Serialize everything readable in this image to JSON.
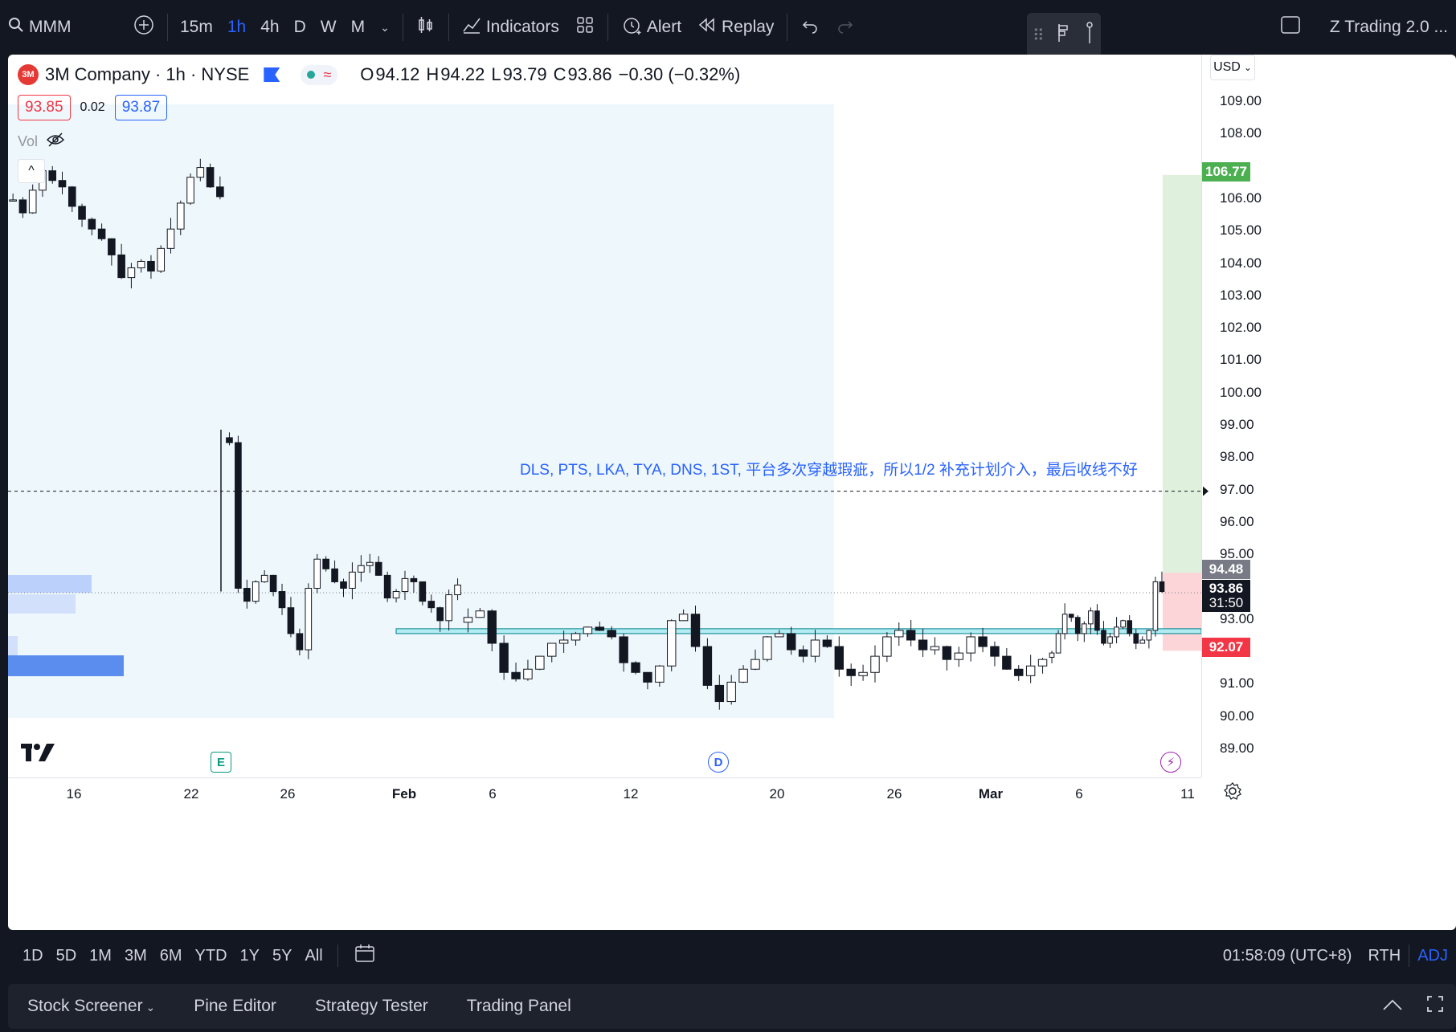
{
  "toolbar": {
    "symbol": "MMM",
    "intervals": [
      "15m",
      "1h",
      "4h",
      "D",
      "W",
      "M"
    ],
    "active_interval": "1h",
    "indicators_label": "Indicators",
    "alert_label": "Alert",
    "replay_label": "Replay",
    "layout_name": "Z Trading 2.0 ..."
  },
  "legend": {
    "logo_text": "3M",
    "title": "3M Company · 1h · NYSE",
    "wave": "≈",
    "ohlc": [
      {
        "k": "O",
        "v": "94.12"
      },
      {
        "k": "H",
        "v": "94.22"
      },
      {
        "k": "L",
        "v": "93.79"
      },
      {
        "k": "C",
        "v": "93.86"
      }
    ],
    "change": "−0.30 (−0.32%)",
    "bid": "93.85",
    "spread": "0.02",
    "ask": "93.87",
    "vol_label": "Vol",
    "collapse": "^"
  },
  "price_axis": {
    "currency": "USD",
    "ticks": [
      "109.00",
      "108.00",
      "106.00",
      "105.00",
      "104.00",
      "103.00",
      "102.00",
      "101.00",
      "100.00",
      "99.00",
      "98.00",
      "97.00",
      "96.00",
      "95.00",
      "93.00",
      "91.00",
      "90.00",
      "89.00"
    ],
    "tags": {
      "target": {
        "label": "106.77",
        "color": "#4caf50"
      },
      "entry": {
        "label": "94.48",
        "color": "#787b86"
      },
      "last": {
        "label": "93.86",
        "countdown": "31:50",
        "color": "#131722"
      },
      "stop": {
        "label": "92.07",
        "color": "#f23645"
      }
    }
  },
  "time_axis": {
    "ticks": [
      "16",
      "22",
      "26",
      "Feb",
      "6",
      "12",
      "20",
      "26",
      "Mar",
      "6",
      "11"
    ]
  },
  "events": {
    "earnings": "E",
    "dividend": "D",
    "split": "⚡"
  },
  "annotation": "DLS, PTS, LKA, TYA, DNS, 1ST, 平台多次穿越瑕疵，所以1/2 补充计划介入，最后收线不好",
  "bottom_bar": {
    "ranges": [
      "1D",
      "5D",
      "1M",
      "3M",
      "6M",
      "YTD",
      "1Y",
      "5Y",
      "All"
    ],
    "clock": "01:58:09 (UTC+8)",
    "session": "RTH",
    "adj": "ADJ"
  },
  "panels": {
    "tabs": [
      "Stock Screener",
      "Pine Editor",
      "Strategy Tester",
      "Trading Panel"
    ]
  },
  "chart_data": {
    "type": "candlestick",
    "title": "3M Company · 1h · NYSE",
    "ylim": [
      88.5,
      110
    ],
    "x_ticks": [
      "16",
      "22",
      "26",
      "Feb",
      "6",
      "12",
      "20",
      "26",
      "Mar",
      "6",
      "11"
    ],
    "segments": [
      {
        "x_start": 0,
        "x_end": 270,
        "closes": [
          106.0,
          105.6,
          106.3,
          106.9,
          106.6,
          106.4,
          105.8,
          105.4,
          105.1,
          104.8,
          104.3,
          103.6,
          103.9,
          104.1,
          103.8,
          104.5,
          105.1,
          105.9,
          106.7,
          107.0,
          106.4,
          106.1
        ]
      },
      {
        "x_start": 270,
        "x_end": 565,
        "closes": [
          98.5,
          94.0,
          93.6,
          94.2,
          94.4,
          93.9,
          93.4,
          92.6,
          92.1,
          94.0,
          94.9,
          94.6,
          94.2,
          94.0,
          94.5,
          94.7,
          94.8,
          94.4,
          93.7,
          93.9,
          94.3,
          94.2,
          93.6,
          93.4,
          93.0,
          93.8,
          94.1
        ]
      },
      {
        "x_start": 565,
        "x_end": 1295,
        "closes": [
          93.1,
          93.3,
          92.3,
          91.4,
          91.2,
          91.5,
          91.9,
          92.3,
          92.4,
          92.6,
          92.8,
          92.7,
          92.5,
          91.7,
          91.4,
          91.1,
          91.6,
          93.0,
          93.2,
          92.2,
          91.0,
          90.5,
          91.1,
          91.5,
          91.8,
          92.5,
          92.6,
          92.1,
          91.9,
          92.4,
          92.2,
          91.5,
          91.3,
          91.4,
          91.9,
          92.5,
          92.7,
          92.4,
          92.1,
          92.2,
          91.8,
          92.0,
          92.5,
          92.2,
          91.9,
          91.5,
          91.3,
          91.6,
          91.8
        ]
      },
      {
        "x_start": 1295,
        "x_end": 1440,
        "closes": [
          92.0,
          92.6,
          93.2,
          93.1,
          92.6,
          92.9,
          93.3,
          92.7,
          92.3,
          92.5,
          92.8,
          93.0,
          92.6,
          92.3,
          92.4,
          92.7,
          94.2,
          93.9
        ]
      }
    ],
    "levels": {
      "target": 106.77,
      "entry": 94.48,
      "last": 93.86,
      "stop": 92.07,
      "dashed_line": 97.0,
      "support_zone": [
        92.6,
        92.75
      ]
    }
  }
}
